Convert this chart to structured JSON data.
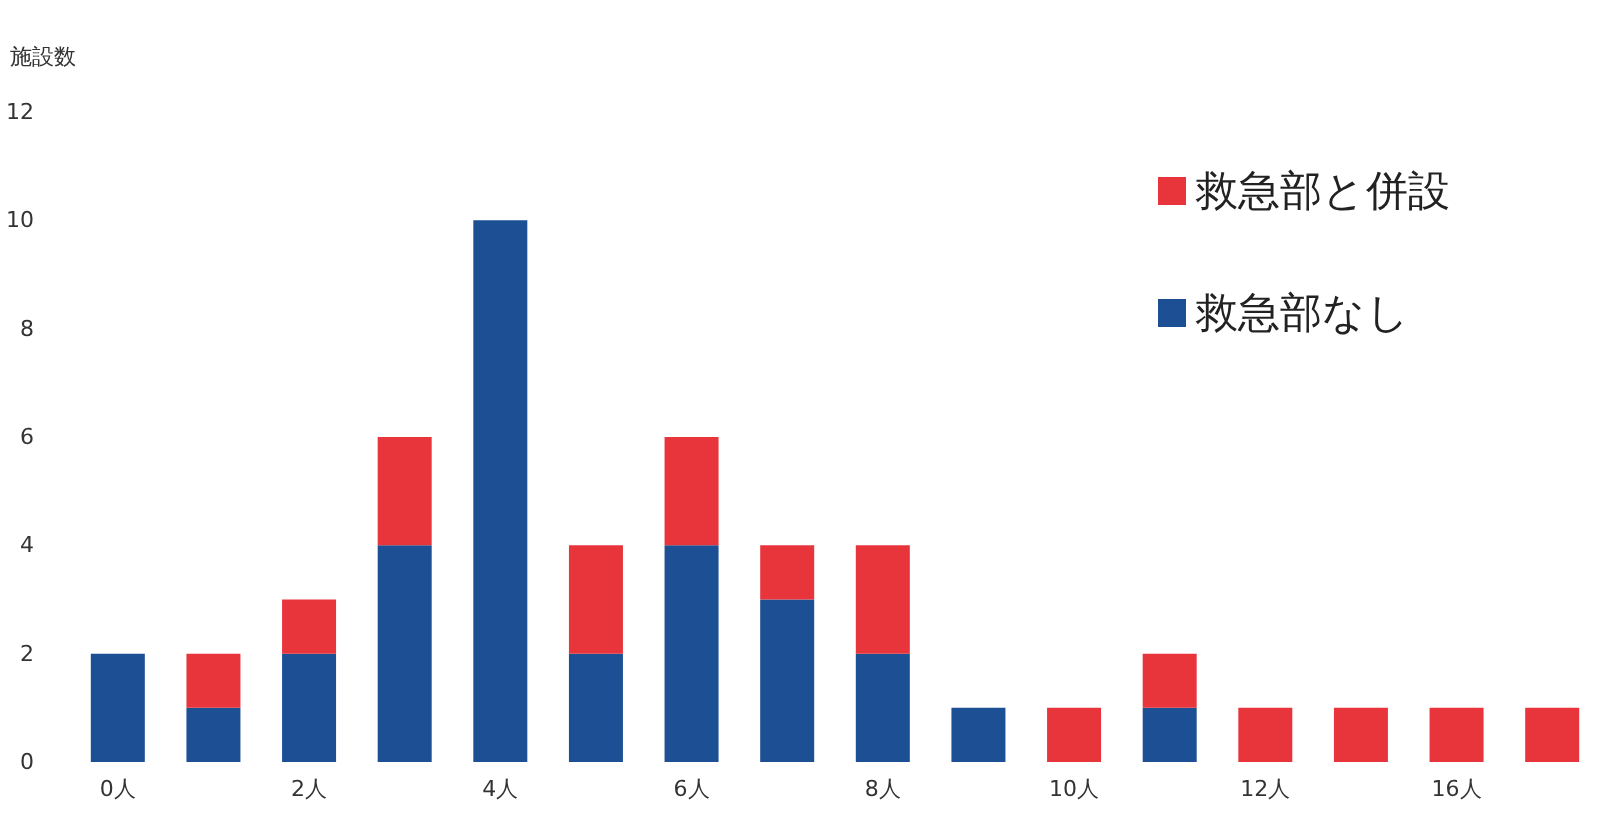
{
  "chart_data": {
    "type": "bar",
    "stacked": true,
    "ylabel": "施設数",
    "categories": [
      "0人",
      null,
      "2人",
      null,
      "4人",
      null,
      "6人",
      null,
      "8人",
      null,
      "10人",
      null,
      "12人",
      null,
      "16人",
      null
    ],
    "series": [
      {
        "name": "救急部なし",
        "color": "#1c4f93",
        "values": [
          2,
          1,
          2,
          4,
          10,
          2,
          4,
          3,
          2,
          1,
          0,
          1,
          0,
          0,
          0,
          0
        ]
      },
      {
        "name": "救急部と併設",
        "color": "#e8353b",
        "values": [
          0,
          1,
          1,
          2,
          0,
          2,
          2,
          1,
          2,
          0,
          1,
          1,
          1,
          1,
          1,
          1
        ]
      }
    ],
    "ylim": [
      0,
      12
    ],
    "yticks": [
      0,
      2,
      4,
      6,
      8,
      10,
      12
    ],
    "grid": false,
    "legend": "top right"
  }
}
